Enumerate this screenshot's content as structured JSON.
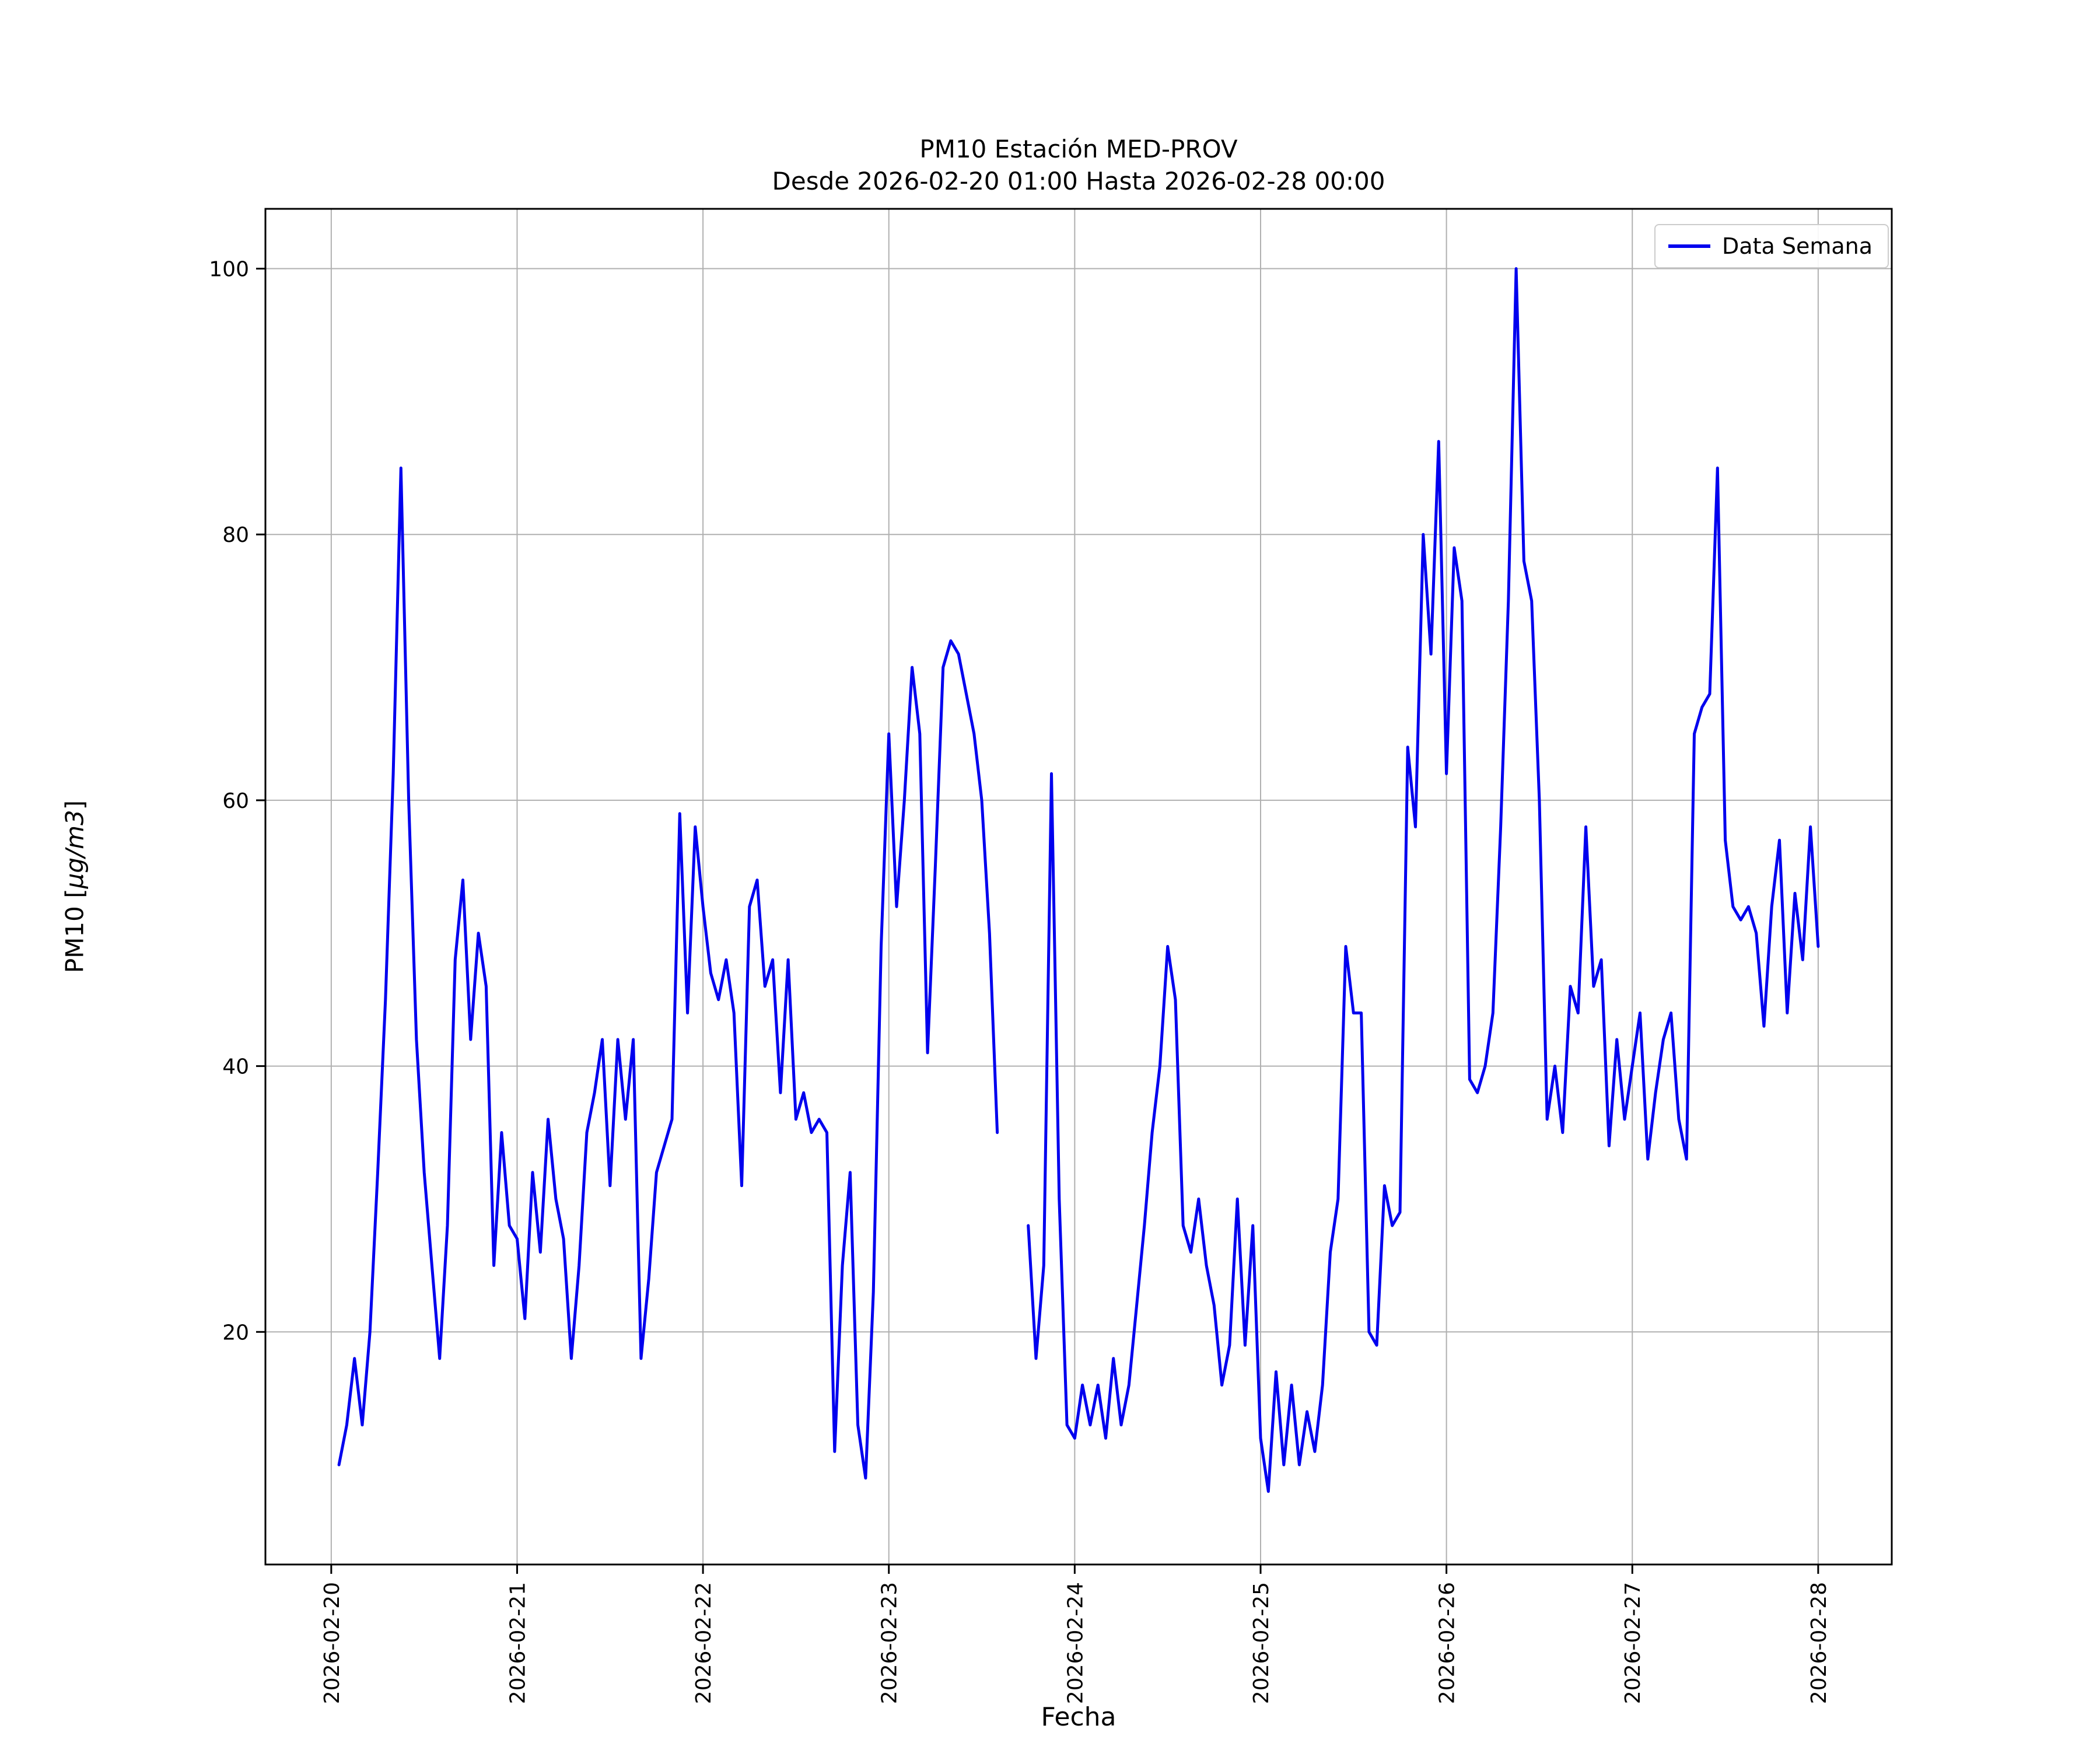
{
  "chart_data": {
    "type": "line",
    "title": "PM10 Estación MED-PROV",
    "subtitle": "Desde 2026-02-20 01:00 Hasta 2026-02-28 00:00",
    "xlabel": "Fecha",
    "ylabel": "PM10 [µg/m3]",
    "ylabel_parts": {
      "prefix": "PM10 [",
      "math": "µg/m3",
      "suffix": "]"
    },
    "grid": true,
    "legend_position": "upper right",
    "line_color": "#0000ee",
    "grid_color": "#b0b0b0",
    "y_ticks": [
      20,
      40,
      60,
      80,
      100
    ],
    "ylim": [
      2.5,
      104.5
    ],
    "xlim_hours": [
      -8.5,
      201.5
    ],
    "x_ticks": [
      "2026-02-20",
      "2026-02-21",
      "2026-02-22",
      "2026-02-23",
      "2026-02-24",
      "2026-02-25",
      "2026-02-26",
      "2026-02-27",
      "2026-02-28"
    ],
    "x_tick_interval_hours": 24,
    "series": [
      {
        "name": "Data Semana",
        "color": "#0000ee",
        "start": "2026-02-20 01:00",
        "start_hour_offset": 1,
        "interval_hours": 1,
        "values": [
          10,
          13,
          18,
          13,
          20,
          32,
          45,
          62,
          85,
          60,
          42,
          32,
          25,
          18,
          28,
          48,
          54,
          42,
          50,
          46,
          25,
          35,
          28,
          27,
          21,
          32,
          26,
          36,
          30,
          27,
          18,
          25,
          35,
          38,
          42,
          31,
          42,
          36,
          42,
          18,
          24,
          32,
          34,
          36,
          59,
          44,
          58,
          52,
          47,
          45,
          48,
          44,
          31,
          52,
          54,
          46,
          48,
          38,
          48,
          36,
          38,
          35,
          36,
          35,
          11,
          25,
          32,
          13,
          9,
          23,
          49,
          65,
          52,
          60,
          70,
          65,
          41,
          55,
          70,
          72,
          71,
          68,
          65,
          60,
          50,
          35,
          null,
          null,
          null,
          28,
          18,
          25,
          62,
          30,
          13,
          12,
          16,
          13,
          16,
          12,
          18,
          13,
          16,
          22,
          28,
          35,
          40,
          49,
          45,
          28,
          26,
          30,
          25,
          22,
          16,
          19,
          30,
          19,
          28,
          12,
          8,
          17,
          10,
          16,
          10,
          14,
          11,
          16,
          26,
          30,
          49,
          44,
          44,
          20,
          19,
          31,
          28,
          29,
          64,
          58,
          80,
          71,
          87,
          62,
          79,
          75,
          39,
          38,
          40,
          44,
          58,
          75,
          100,
          78,
          75,
          60,
          36,
          40,
          35,
          46,
          44,
          58,
          46,
          48,
          34,
          42,
          36,
          40,
          44,
          33,
          38,
          42,
          44,
          36,
          33,
          65,
          67,
          68,
          85,
          57,
          52,
          51,
          52,
          50,
          43,
          52,
          57,
          44,
          53,
          48,
          58,
          49
        ]
      }
    ]
  },
  "legend": {
    "entry_label": "Data Semana"
  }
}
